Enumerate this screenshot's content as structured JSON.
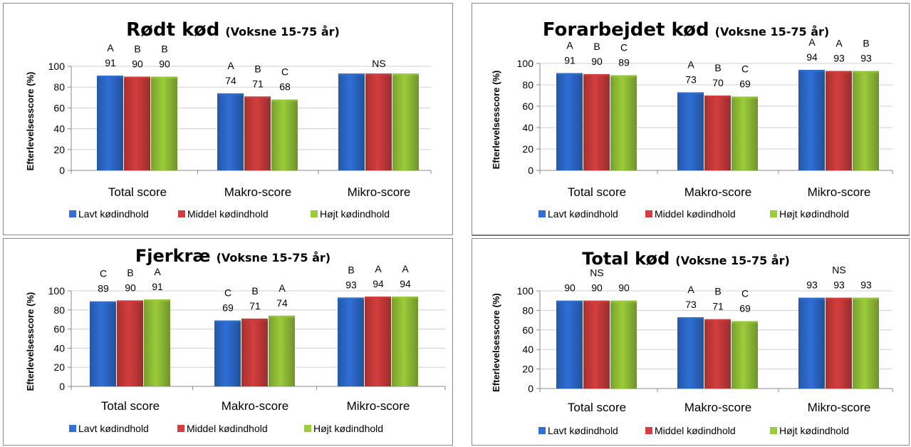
{
  "theme": {
    "blue": "#2f6fd6",
    "red": "#d43e3e",
    "green": "#9bcc3a",
    "grid": "#cfcfcf",
    "axis": "#8a8a8a"
  },
  "legend": [
    "Lavt kødindhold",
    "Middel kødindhold",
    "Højt kødindhold"
  ],
  "chart_data": [
    {
      "type": "bar",
      "title": "Rødt kød",
      "subtitle": "(Voksne 15-75 år)",
      "ylabel": "Efterlevelsesscore (%)",
      "ylim": [
        0,
        100
      ],
      "yticks": [
        0,
        20,
        40,
        60,
        80,
        100
      ],
      "categories": [
        "Total score",
        "Makro-score",
        "Mikro-score"
      ],
      "series": [
        {
          "name": "Lavt kødindhold",
          "color": "#2f6fd6",
          "values": [
            91,
            74,
            93
          ]
        },
        {
          "name": "Middel kødindhold",
          "color": "#d43e3e",
          "values": [
            90,
            71,
            93
          ]
        },
        {
          "name": "Højt kødindhold",
          "color": "#9bcc3a",
          "values": [
            90,
            68,
            93
          ]
        }
      ],
      "data_labels": [
        [
          "91",
          "90",
          "90"
        ],
        [
          "74",
          "71",
          "68"
        ],
        [
          "",
          "",
          ""
        ]
      ],
      "significance": [
        [
          "A",
          "B",
          "B"
        ],
        [
          "A",
          "B",
          "C"
        ],
        [
          "",
          "NS",
          ""
        ]
      ],
      "legend_position": "bottom",
      "grid": true
    },
    {
      "type": "bar",
      "title": "Forarbejdet kød",
      "subtitle": "(Voksne 15-75 år)",
      "ylabel": "Efterlevelsesscore (%)",
      "ylim": [
        0,
        100
      ],
      "yticks": [
        0,
        20,
        40,
        60,
        80,
        100
      ],
      "categories": [
        "Total score",
        "Makro-score",
        "Mikro-score"
      ],
      "series": [
        {
          "name": "Lavt kødindhold",
          "color": "#2f6fd6",
          "values": [
            91,
            73,
            94
          ]
        },
        {
          "name": "Middel kødindhold",
          "color": "#d43e3e",
          "values": [
            90,
            70,
            93
          ]
        },
        {
          "name": "Højt kødindhold",
          "color": "#9bcc3a",
          "values": [
            89,
            69,
            93
          ]
        }
      ],
      "data_labels": [
        [
          "91",
          "90",
          "89"
        ],
        [
          "73",
          "70",
          "69"
        ],
        [
          "94",
          "93",
          "93"
        ]
      ],
      "significance": [
        [
          "A",
          "B",
          "C"
        ],
        [
          "A",
          "B",
          "C"
        ],
        [
          "A",
          "A",
          "B"
        ]
      ],
      "legend_position": "bottom",
      "grid": true
    },
    {
      "type": "bar",
      "title": "Fjerkræ",
      "subtitle": "(Voksne 15-75 år)",
      "ylabel": "Efterlevelsesscore (%)",
      "ylim": [
        0,
        100
      ],
      "yticks": [
        0,
        20,
        40,
        60,
        80,
        100
      ],
      "categories": [
        "Total score",
        "Makro-score",
        "Mikro-score"
      ],
      "series": [
        {
          "name": "Lavt kødindhold",
          "color": "#2f6fd6",
          "values": [
            89,
            69,
            93
          ]
        },
        {
          "name": "Middel kødindhold",
          "color": "#d43e3e",
          "values": [
            90,
            71,
            94
          ]
        },
        {
          "name": "Højt kødindhold",
          "color": "#9bcc3a",
          "values": [
            91,
            74,
            94
          ]
        }
      ],
      "data_labels": [
        [
          "89",
          "90",
          "91"
        ],
        [
          "69",
          "71",
          "74"
        ],
        [
          "93",
          "94",
          "94"
        ]
      ],
      "significance": [
        [
          "C",
          "B",
          "A"
        ],
        [
          "C",
          "B",
          "A"
        ],
        [
          "B",
          "A",
          "A"
        ]
      ],
      "legend_position": "bottom",
      "grid": true
    },
    {
      "type": "bar",
      "title": "Total kød",
      "subtitle": "(Voksne 15-75 år)",
      "ylabel": "Efterlevelsesscore (%)",
      "ylim": [
        0,
        100
      ],
      "yticks": [
        0,
        20,
        40,
        60,
        80,
        100
      ],
      "categories": [
        "Total score",
        "Makro-score",
        "Mikro-score"
      ],
      "series": [
        {
          "name": "Lavt kødindhold",
          "color": "#2f6fd6",
          "values": [
            90,
            73,
            93
          ]
        },
        {
          "name": "Middel kødindhold",
          "color": "#d43e3e",
          "values": [
            90,
            71,
            93
          ]
        },
        {
          "name": "Højt kødindhold",
          "color": "#9bcc3a",
          "values": [
            90,
            69,
            93
          ]
        }
      ],
      "data_labels": [
        [
          "90",
          "90",
          "90"
        ],
        [
          "73",
          "71",
          "69"
        ],
        [
          "93",
          "93",
          "93"
        ]
      ],
      "significance": [
        [
          "",
          "NS",
          ""
        ],
        [
          "A",
          "B",
          "C"
        ],
        [
          "",
          "NS",
          ""
        ]
      ],
      "legend_position": "bottom",
      "grid": true
    }
  ]
}
